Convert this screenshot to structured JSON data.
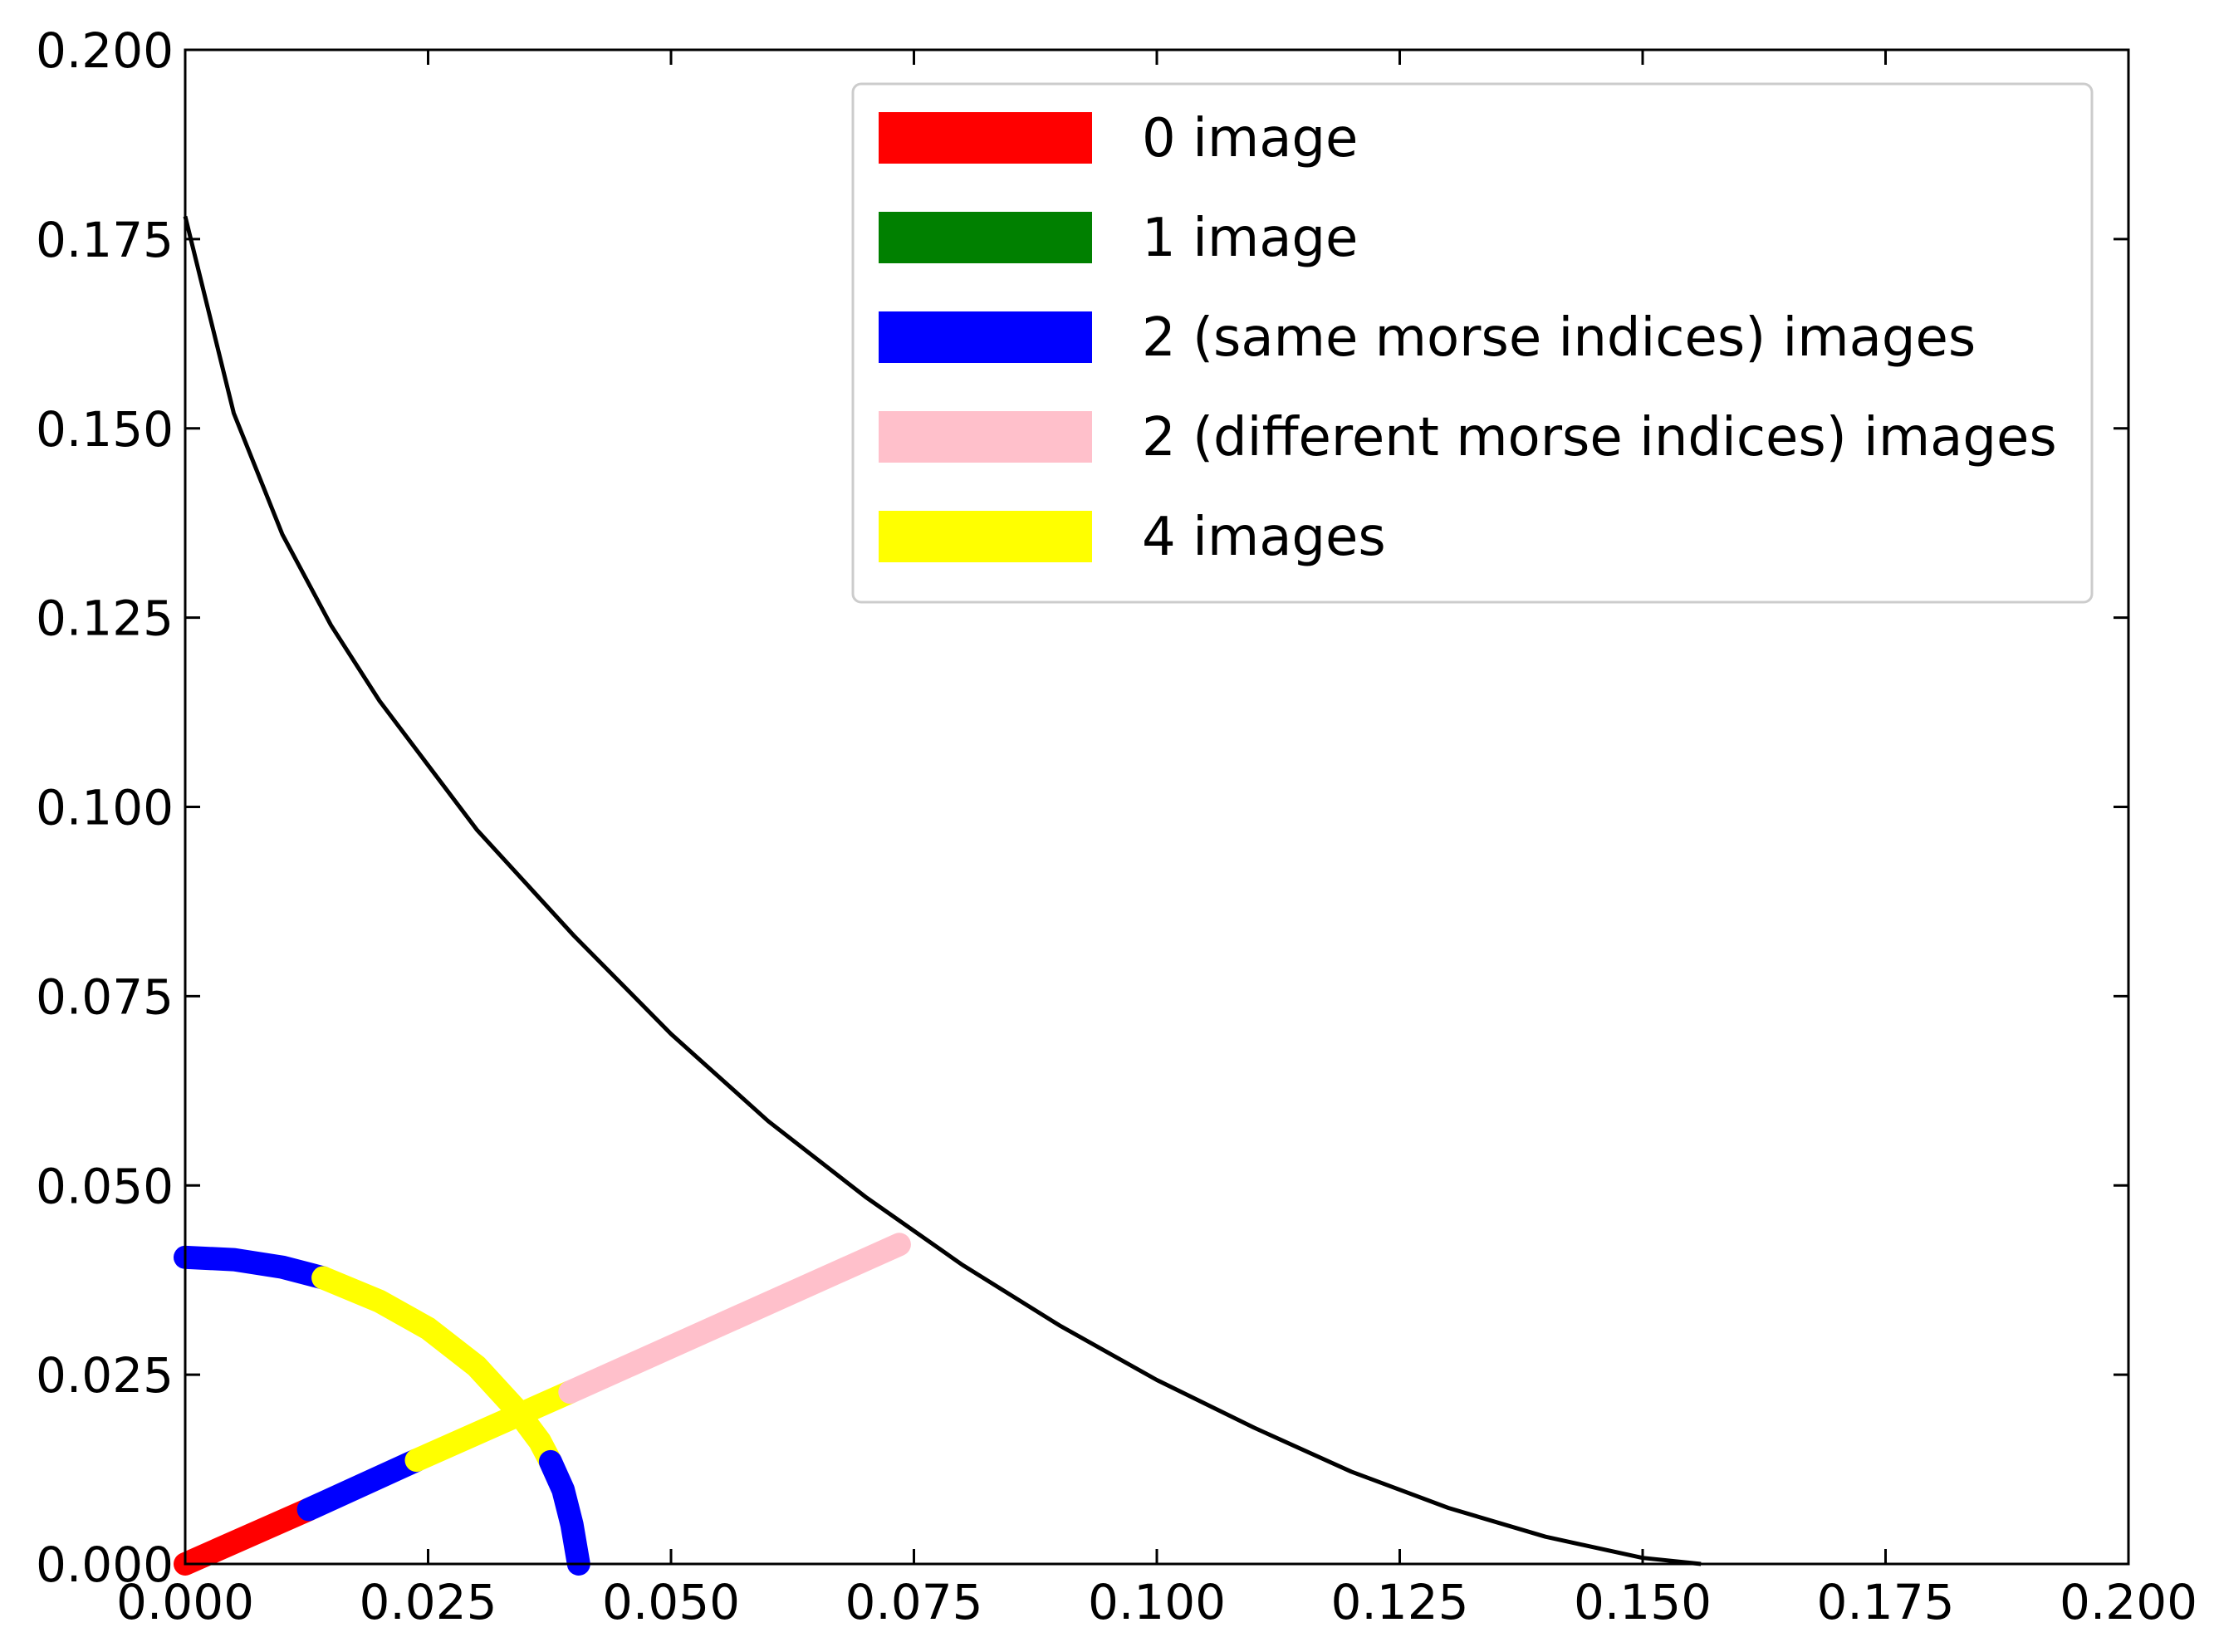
{
  "chart_data": {
    "type": "line",
    "title": "",
    "xlabel": "",
    "ylabel": "",
    "xlim": [
      0,
      0.2
    ],
    "ylim": [
      0,
      0.2
    ],
    "grid": false,
    "legend_placement": "top-right",
    "xticks": [
      "0.000",
      "0.025",
      "0.050",
      "0.075",
      "0.100",
      "0.125",
      "0.150",
      "0.175",
      "0.200"
    ],
    "yticks": [
      "0.000",
      "0.025",
      "0.050",
      "0.075",
      "0.100",
      "0.125",
      "0.150",
      "0.175",
      "0.200"
    ],
    "legend": [
      {
        "label": "0 image",
        "color": "#ff0000"
      },
      {
        "label": "1 image",
        "color": "#008000"
      },
      {
        "label": "2 (same morse indices) images",
        "color": "#0000ff"
      },
      {
        "label": "2 (different morse indices) images",
        "color": "#ffc0cb"
      },
      {
        "label": "4 images",
        "color": "#ffff00"
      }
    ],
    "boundary_curve": {
      "color": "#000000",
      "x": [
        0.0,
        0.005,
        0.01,
        0.015,
        0.02,
        0.03,
        0.04,
        0.05,
        0.06,
        0.07,
        0.08,
        0.09,
        0.1,
        0.11,
        0.12,
        0.13,
        0.14,
        0.15,
        0.156
      ],
      "y": [
        0.178,
        0.152,
        0.136,
        0.124,
        0.114,
        0.097,
        0.083,
        0.07,
        0.0585,
        0.0485,
        0.0395,
        0.0315,
        0.0243,
        0.018,
        0.0122,
        0.0074,
        0.0036,
        0.0008,
        0.0
      ]
    },
    "segments": [
      {
        "color": "#0000ff",
        "x": [
          0.0,
          0.005,
          0.01,
          0.0142
        ],
        "y": [
          0.0405,
          0.0402,
          0.0392,
          0.0378
        ]
      },
      {
        "color": "#ffff00",
        "x": [
          0.0142,
          0.02,
          0.025,
          0.03,
          0.034,
          0.0365,
          0.0376
        ],
        "y": [
          0.0378,
          0.0347,
          0.0311,
          0.0261,
          0.0205,
          0.0162,
          0.0135
        ]
      },
      {
        "color": "#0000ff",
        "x": [
          0.0376,
          0.0389,
          0.0398,
          0.0405
        ],
        "y": [
          0.0135,
          0.0098,
          0.0052,
          0.0
        ]
      },
      {
        "color": "#ff0000",
        "x": [
          0.0,
          0.0127
        ],
        "y": [
          0.0,
          0.0072
        ]
      },
      {
        "color": "#0000ff",
        "x": [
          0.0127,
          0.0238
        ],
        "y": [
          0.0072,
          0.0137
        ]
      },
      {
        "color": "#ffff00",
        "x": [
          0.0238,
          0.0396
        ],
        "y": [
          0.0137,
          0.0227
        ]
      },
      {
        "color": "#ffc0cb",
        "x": [
          0.0396,
          0.0735
        ],
        "y": [
          0.0227,
          0.0422
        ]
      }
    ]
  }
}
